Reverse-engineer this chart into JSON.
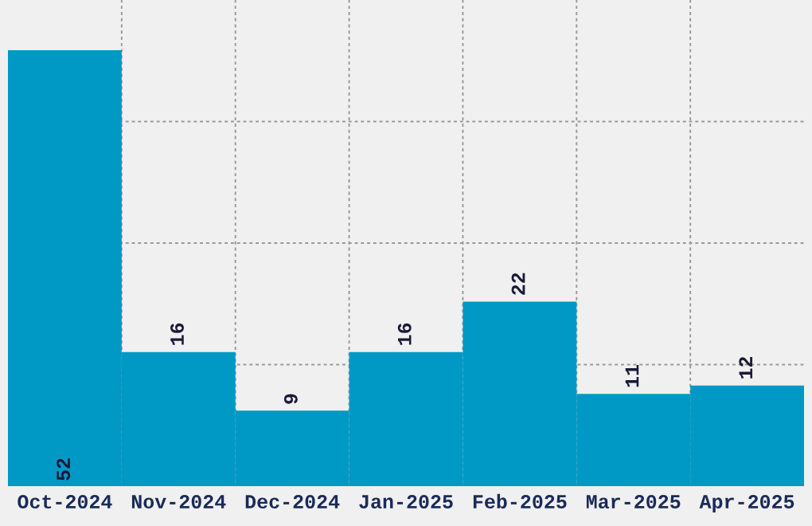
{
  "chart_data": {
    "type": "bar",
    "categories": [
      "Oct-2024",
      "Nov-2024",
      "Dec-2024",
      "Jan-2025",
      "Feb-2025",
      "Mar-2025",
      "Apr-2025"
    ],
    "values": [
      52,
      16,
      9,
      16,
      22,
      11,
      12
    ],
    "color": "#0099c6",
    "ylim": [
      0,
      58
    ],
    "yticks": [
      {
        "value": 14.5,
        "label": null
      },
      {
        "value": 29,
        "label": null
      },
      {
        "value": 43.5,
        "label": null
      }
    ],
    "tick_labels": "x",
    "grid": true,
    "data_labels": true
  }
}
